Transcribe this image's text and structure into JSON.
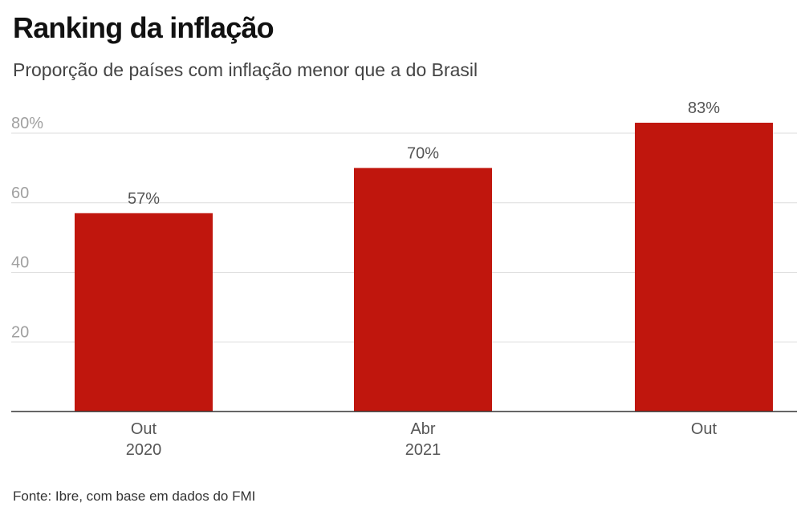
{
  "header": {
    "title": "Ranking da inflação",
    "subtitle": "Proporção de países com inflação menor que a do Brasil"
  },
  "footer": {
    "source": "Fonte: Ibre, com base em dados do FMI"
  },
  "chart_data": {
    "type": "bar",
    "title": "Ranking da inflação",
    "subtitle": "Proporção de países com inflação menor que a do Brasil",
    "categories": [
      [
        "Out",
        "2020"
      ],
      [
        "Abr",
        "2021"
      ],
      [
        "Out",
        ""
      ]
    ],
    "values": [
      57,
      70,
      83
    ],
    "value_labels": [
      "57%",
      "70%",
      "83%"
    ],
    "y_ticks": [
      {
        "value": 20,
        "label": "20"
      },
      {
        "value": 40,
        "label": "40"
      },
      {
        "value": 60,
        "label": "60"
      },
      {
        "value": 80,
        "label": "80%"
      }
    ],
    "ylim": [
      0,
      80
    ],
    "grid": true,
    "legend": "none",
    "bar_color": "#c0160d",
    "xlabel": "",
    "ylabel": ""
  }
}
